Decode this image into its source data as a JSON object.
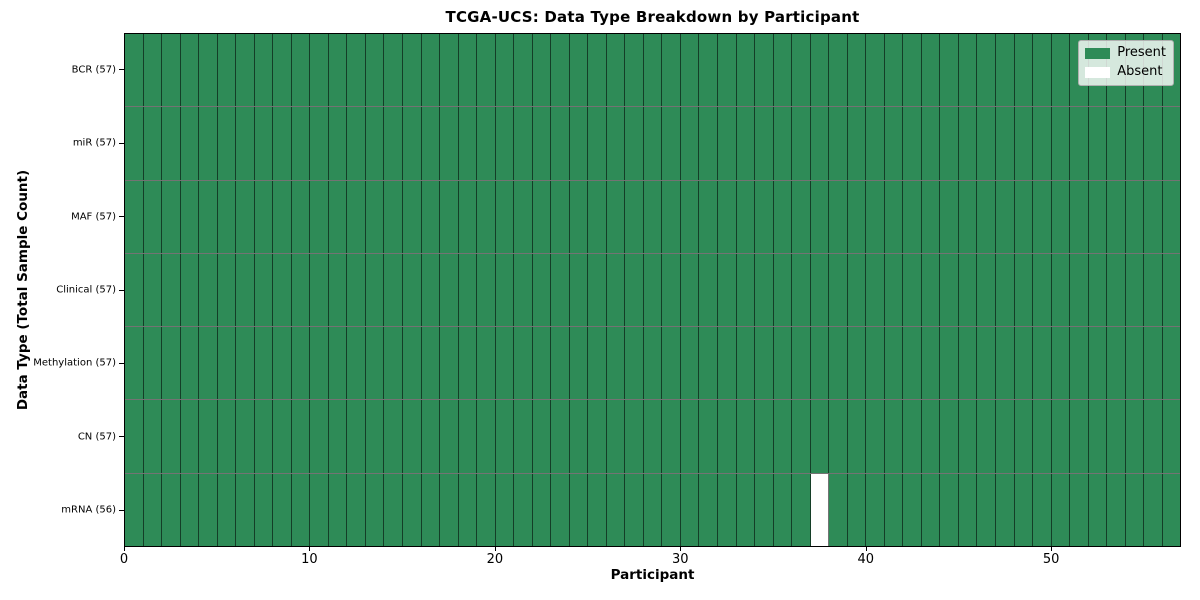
{
  "chart_data": {
    "type": "heatmap",
    "title": "TCGA-UCS: Data Type Breakdown by Participant",
    "xlabel": "Participant",
    "ylabel": "Data Type (Total Sample Count)",
    "x_range": [
      0,
      57
    ],
    "x_ticks": [
      0,
      10,
      20,
      30,
      40,
      50
    ],
    "n_participants": 57,
    "rows": [
      {
        "label": "BCR (57)",
        "data_type": "BCR",
        "total_samples": 57,
        "absent_participants": []
      },
      {
        "label": "miR (57)",
        "data_type": "miR",
        "total_samples": 57,
        "absent_participants": []
      },
      {
        "label": "MAF (57)",
        "data_type": "MAF",
        "total_samples": 57,
        "absent_participants": []
      },
      {
        "label": "Clinical (57)",
        "data_type": "Clinical",
        "total_samples": 57,
        "absent_participants": []
      },
      {
        "label": "Methylation (57)",
        "data_type": "Methylation",
        "total_samples": 57,
        "absent_participants": []
      },
      {
        "label": "CN (57)",
        "data_type": "CN",
        "total_samples": 57,
        "absent_participants": []
      },
      {
        "label": "mRNA (56)",
        "data_type": "mRNA",
        "total_samples": 56,
        "absent_participants": [
          37
        ]
      }
    ],
    "legend": {
      "position": "upper right",
      "items": [
        {
          "label": "Present",
          "color": "#2e8b57"
        },
        {
          "label": "Absent",
          "color": "#ffffff"
        }
      ]
    },
    "colors": {
      "present": "#2e8b57",
      "absent": "#ffffff",
      "cell_edge": "rgba(0,0,0,0.55)",
      "axis_frame": "#000000",
      "background": "#ffffff"
    },
    "grid": false
  }
}
